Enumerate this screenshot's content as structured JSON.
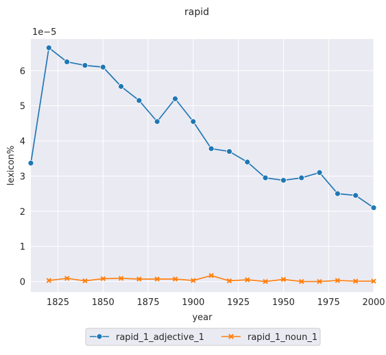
{
  "chart_data": {
    "type": "line",
    "title": "rapid",
    "xlabel": "year",
    "ylabel": "lexicon%",
    "y_scale_note": "1e−5",
    "xlim": [
      1810,
      2000
    ],
    "ylim": [
      -0.3,
      6.9
    ],
    "x_ticks": [
      1825,
      1850,
      1875,
      1900,
      1925,
      1950,
      1975,
      2000
    ],
    "y_ticks": [
      0,
      1,
      2,
      3,
      4,
      5,
      6
    ],
    "grid": true,
    "legend_position": "bottom-center",
    "series": [
      {
        "name": "rapid_1_adjective_1",
        "color": "#1f77b4",
        "marker": "circle",
        "x": [
          1810,
          1820,
          1830,
          1840,
          1850,
          1860,
          1870,
          1880,
          1890,
          1900,
          1910,
          1920,
          1930,
          1940,
          1950,
          1960,
          1970,
          1980,
          1990,
          2000
        ],
        "y": [
          3.37,
          6.65,
          6.25,
          6.15,
          6.1,
          5.55,
          5.15,
          4.55,
          5.2,
          4.55,
          3.78,
          3.7,
          3.4,
          2.95,
          2.88,
          2.95,
          3.1,
          2.5,
          2.45,
          2.1
        ]
      },
      {
        "name": "rapid_1_noun_1",
        "color": "#ff7f0e",
        "marker": "x",
        "x": [
          1820,
          1830,
          1840,
          1850,
          1860,
          1870,
          1880,
          1890,
          1900,
          1910,
          1920,
          1930,
          1940,
          1950,
          1960,
          1970,
          1980,
          1990,
          2000
        ],
        "y": [
          0.03,
          0.09,
          0.02,
          0.08,
          0.09,
          0.07,
          0.07,
          0.07,
          0.03,
          0.17,
          0.02,
          0.05,
          0.0,
          0.06,
          0.0,
          0.0,
          0.03,
          0.01,
          0.01
        ]
      }
    ]
  }
}
